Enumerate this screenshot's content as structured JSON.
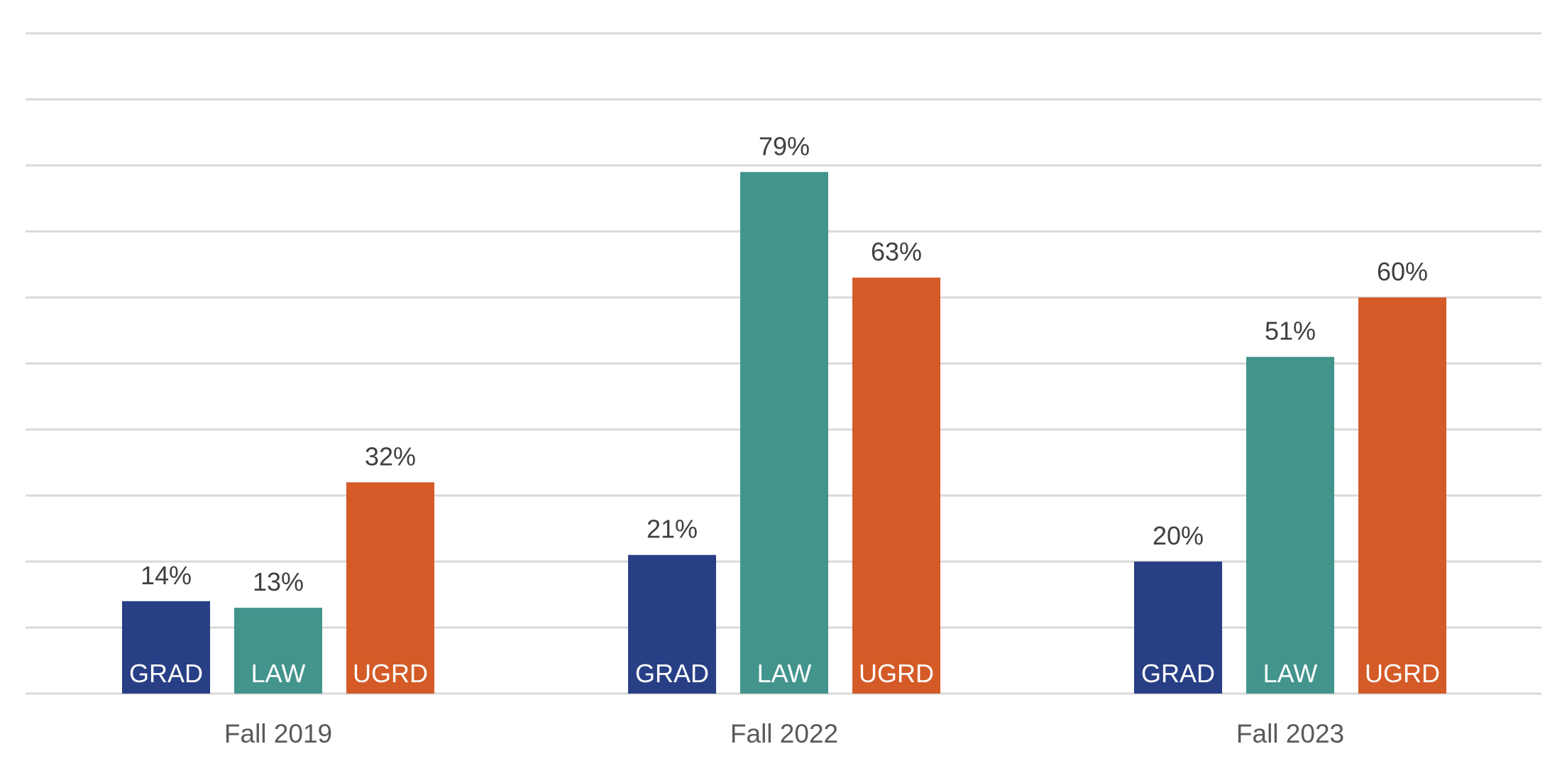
{
  "chart_data": {
    "type": "bar",
    "title": "",
    "xlabel": "",
    "ylabel": "",
    "categories": [
      "Fall 2019",
      "Fall 2022",
      "Fall 2023"
    ],
    "series": [
      {
        "name": "GRAD",
        "values": [
          14,
          21,
          20
        ],
        "color": "#283F86"
      },
      {
        "name": "LAW",
        "values": [
          13,
          79,
          51
        ],
        "color": "#42948D"
      },
      {
        "name": "UGRD",
        "values": [
          32,
          63,
          60
        ],
        "color": "#D45B27"
      }
    ],
    "value_suffix": "%",
    "ylim": [
      0,
      100
    ],
    "y_ticks": [
      0,
      10,
      20,
      30,
      40,
      50,
      60,
      70,
      80,
      90,
      100
    ],
    "y_tick_labels_visible": false,
    "grid": true,
    "legend": "none",
    "series_labels_inside_bars": true,
    "colors": {
      "gridline": "#D9D9D9",
      "data_label": "#404040",
      "category_label": "#595959",
      "series_label": "#FFFFFF"
    }
  }
}
